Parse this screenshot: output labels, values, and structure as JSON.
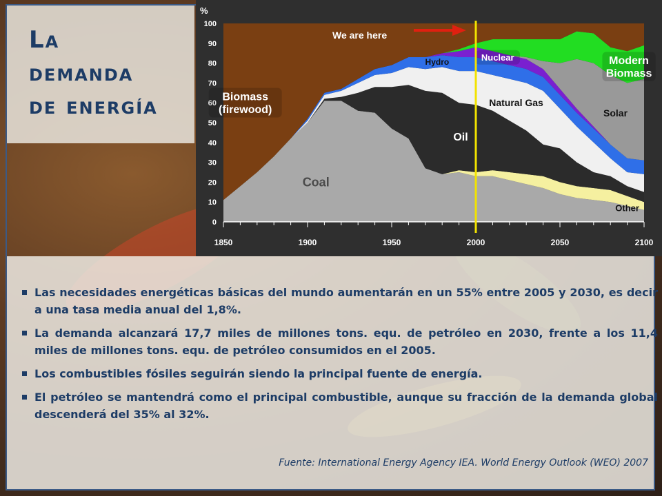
{
  "slide": {
    "title_lines": [
      "La",
      "demanda",
      "de energía"
    ],
    "bullets": [
      "Las necesidades energéticas básicas del mundo aumentarán en un 55% entre 2005 y 2030, es decir a una tasa media anual del 1,8%.",
      "La demanda alcanzará 17,7 miles de millones tons. equ. de petróleo en 2030, frente a los 11,4 miles de millones tons. equ. de petróleo consumidos en el 2005.",
      "Los combustibles fósiles seguirán siendo la principal fuente de energía.",
      "El petróleo se mantendrá como el principal combustible, aunque su fracción de la demanda global descenderá del 35% al 32%."
    ],
    "source": "Fuente: International Energy Agency IEA. World Energy Outlook (WEO) 2007",
    "colors": {
      "title": "#1d3c66",
      "text": "#1d3c66",
      "frame": "#3b5a86"
    }
  },
  "chart_data": {
    "type": "area",
    "stacked": true,
    "ylabel": "%",
    "xlim": [
      1850,
      2100
    ],
    "ylim": [
      0,
      100
    ],
    "x_ticks": [
      1850,
      1900,
      1950,
      2000,
      2050,
      2100
    ],
    "y_ticks": [
      0,
      10,
      20,
      30,
      40,
      50,
      60,
      70,
      80,
      90,
      100
    ],
    "grid": false,
    "x": [
      1850,
      1860,
      1870,
      1880,
      1890,
      1900,
      1910,
      1920,
      1930,
      1940,
      1950,
      1960,
      1970,
      1980,
      1990,
      2000,
      2010,
      2020,
      2030,
      2040,
      2050,
      2060,
      2070,
      2080,
      2090,
      2100
    ],
    "series": [
      {
        "name": "Coal",
        "color": "#a9a9a9",
        "values": [
          11,
          18,
          25,
          33,
          42,
          50,
          61,
          61,
          56,
          55,
          47,
          42,
          27,
          24,
          25,
          23,
          23,
          21,
          19,
          17,
          14,
          12,
          11,
          10,
          8,
          6
        ]
      },
      {
        "name": "Other",
        "color": "#f5f0a0",
        "values": [
          0,
          0,
          0,
          0,
          0,
          0,
          0,
          0,
          0,
          0,
          0,
          0,
          0,
          0,
          1,
          2,
          3,
          4,
          5,
          6,
          6,
          6,
          6,
          6,
          5,
          4
        ]
      },
      {
        "name": "Oil",
        "color": "#2b2b2b",
        "values": [
          0,
          0,
          0,
          0,
          0,
          0,
          1,
          2,
          9,
          13,
          21,
          27,
          39,
          41,
          34,
          34,
          30,
          26,
          22,
          16,
          17,
          12,
          8,
          7,
          5,
          5
        ]
      },
      {
        "name": "Natural Gas",
        "color": "#f0f0f0",
        "values": [
          0,
          0,
          0,
          0,
          0,
          1,
          2,
          3,
          5,
          6,
          7,
          9,
          11,
          13,
          16,
          17,
          18,
          21,
          24,
          27,
          20,
          18,
          15,
          9,
          7,
          9
        ]
      },
      {
        "name": "Hydro",
        "color": "#2f6fe8",
        "values": [
          0,
          0,
          0,
          0,
          0,
          1,
          1,
          1,
          2,
          3,
          4,
          5,
          6,
          6,
          7,
          7,
          7,
          7,
          7,
          7,
          7,
          7,
          7,
          7,
          7,
          7
        ]
      },
      {
        "name": "Nuclear",
        "color": "#7a20d0",
        "values": [
          0,
          0,
          0,
          0,
          0,
          0,
          0,
          0,
          0,
          0,
          0,
          0,
          0,
          1,
          3,
          5,
          5,
          5,
          5,
          4,
          3,
          2,
          1,
          0,
          0,
          0
        ]
      },
      {
        "name": "Solar",
        "color": "#999999",
        "values": [
          0,
          0,
          0,
          0,
          0,
          0,
          0,
          0,
          0,
          0,
          0,
          0,
          0,
          0,
          0,
          0,
          0,
          0,
          1,
          4,
          13,
          25,
          32,
          35,
          38,
          41
        ]
      },
      {
        "name": "Modern Biomass",
        "color": "#22dd22",
        "values": [
          0,
          0,
          0,
          0,
          0,
          0,
          0,
          0,
          0,
          0,
          0,
          0,
          0,
          0,
          1,
          2,
          6,
          8,
          9,
          11,
          12,
          14,
          15,
          14,
          16,
          17
        ]
      },
      {
        "name": "Biomass (firewood)",
        "color": "#7a3f12",
        "values": [
          89,
          82,
          75,
          67,
          58,
          48,
          35,
          33,
          28,
          23,
          21,
          17,
          17,
          15,
          13,
          10,
          8,
          8,
          8,
          8,
          8,
          4,
          5,
          12,
          14,
          11
        ]
      }
    ],
    "series_labels": [
      {
        "series": "Biomass (firewood)",
        "lines": [
          "Biomass",
          "(firewood)"
        ],
        "boxed": true
      },
      {
        "series": "Hydro",
        "lines": [
          "Hydro"
        ]
      },
      {
        "series": "Nuclear",
        "lines": [
          "Nuclear"
        ],
        "boxed": true
      },
      {
        "series": "Modern Biomass",
        "lines": [
          "Modern",
          "Biomass"
        ],
        "boxed": true
      },
      {
        "series": "Solar",
        "lines": [
          "Solar"
        ]
      },
      {
        "series": "Natural Gas",
        "lines": [
          "Natural Gas"
        ]
      },
      {
        "series": "Oil",
        "lines": [
          "Oil"
        ]
      },
      {
        "series": "Coal",
        "lines": [
          "Coal"
        ]
      },
      {
        "series": "Other",
        "lines": [
          "Other"
        ]
      }
    ],
    "annotation": {
      "text": "We are here",
      "x": 2000,
      "line_color": "#f2e300",
      "arrow_color": "#e02010"
    },
    "colors": {
      "background": "#2f2f2f",
      "text": "#ffffff"
    }
  }
}
